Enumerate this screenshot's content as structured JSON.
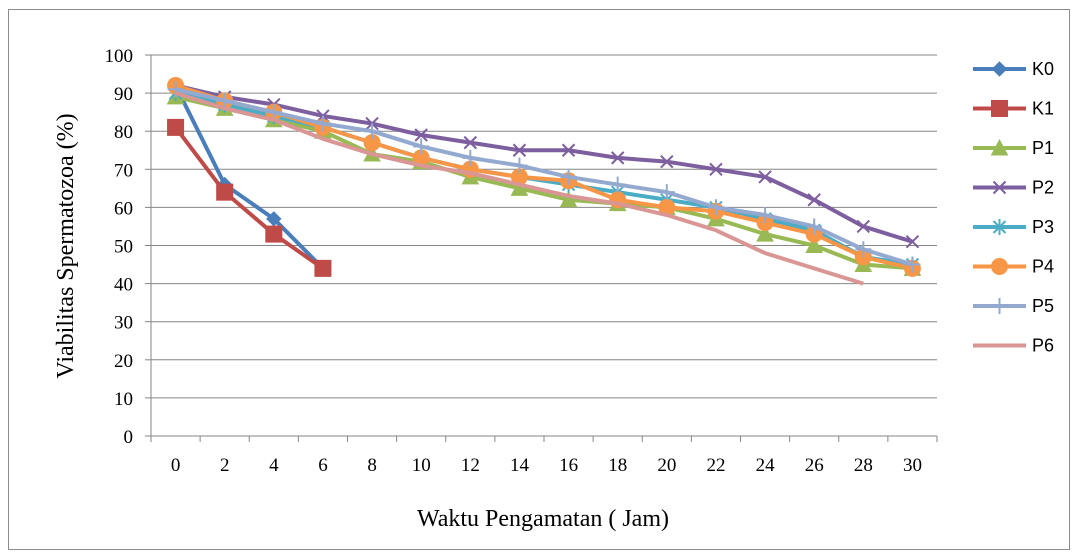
{
  "chart_data": {
    "type": "line",
    "xlabel": "Waktu Pengamatan ( Jam)",
    "ylabel": "Viabilitas Spermatozoa (%)",
    "ylim": [
      0,
      100
    ],
    "ystep": 10,
    "x": [
      0,
      2,
      4,
      6,
      8,
      10,
      12,
      14,
      16,
      18,
      20,
      22,
      24,
      26,
      28,
      30
    ],
    "grid": "horizontal",
    "legend": "right",
    "series": [
      {
        "name": "K0",
        "color": "#4a7ebb",
        "marker": "diamond",
        "values": [
          92,
          66,
          57,
          44,
          null,
          null,
          null,
          null,
          null,
          null,
          null,
          null,
          null,
          null,
          null,
          null
        ]
      },
      {
        "name": "K1",
        "color": "#be4b48",
        "marker": "square",
        "values": [
          81,
          64,
          53,
          44,
          null,
          null,
          null,
          null,
          null,
          null,
          null,
          null,
          null,
          null,
          null,
          null
        ]
      },
      {
        "name": "P1",
        "color": "#98b954",
        "marker": "triangle",
        "values": [
          89,
          86,
          83,
          80,
          74,
          72,
          68,
          65,
          62,
          61,
          60,
          57,
          53,
          50,
          45,
          44
        ]
      },
      {
        "name": "P2",
        "color": "#7d5fa0",
        "marker": "x",
        "values": [
          92,
          89,
          87,
          84,
          82,
          79,
          77,
          75,
          75,
          73,
          72,
          70,
          68,
          62,
          55,
          51
        ]
      },
      {
        "name": "P3",
        "color": "#4aacc5",
        "marker": "star",
        "values": [
          90,
          87,
          84,
          81,
          77,
          73,
          70,
          68,
          66,
          64,
          62,
          60,
          57,
          54,
          47,
          45
        ]
      },
      {
        "name": "P4",
        "color": "#f79646",
        "marker": "circle",
        "values": [
          92,
          88,
          85,
          81,
          77,
          73,
          70,
          68,
          67,
          62,
          60,
          59,
          56,
          53,
          47,
          44
        ]
      },
      {
        "name": "P5",
        "color": "#93a9d0",
        "marker": "plus",
        "values": [
          91,
          88,
          85,
          82,
          80,
          76,
          73,
          71,
          68,
          66,
          64,
          60,
          58,
          55,
          49,
          45
        ]
      },
      {
        "name": "P6",
        "color": "#d99694",
        "marker": "none",
        "values": [
          90,
          86,
          83,
          78,
          74,
          71,
          69,
          66,
          63,
          61,
          58,
          54,
          48,
          44,
          40,
          null
        ]
      }
    ]
  }
}
